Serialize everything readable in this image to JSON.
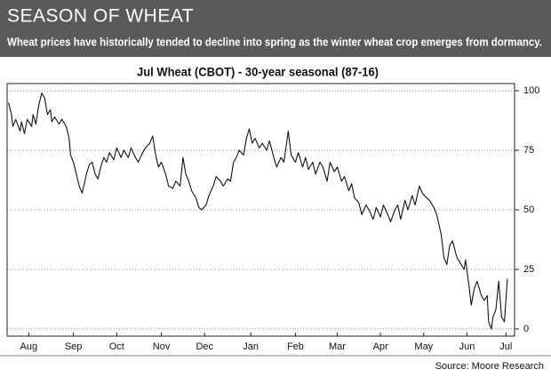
{
  "chart_data": {
    "type": "line",
    "header": "SEASON OF WHEAT",
    "subtitle": "Wheat prices have historically tended to decline into spring as the winter wheat crop emerges from dormancy.",
    "title": "Jul Wheat (CBOT) - 30-year seasonal (87-16)",
    "source": "Source: Moore Research",
    "x": [
      1,
      3,
      4,
      6,
      9,
      10,
      12,
      14,
      17,
      18,
      20,
      22,
      24,
      26,
      28,
      30,
      31,
      33,
      36,
      38,
      41,
      43,
      44,
      46,
      48,
      50,
      52,
      54,
      55,
      57,
      59,
      61,
      63,
      65,
      67,
      69,
      71,
      74,
      76,
      79,
      81,
      84,
      86,
      89,
      91,
      94,
      96,
      99,
      101,
      103,
      105,
      107,
      110,
      112,
      115,
      117,
      120,
      122,
      124,
      126,
      128,
      131,
      133,
      135,
      138,
      140,
      143,
      145,
      148,
      150,
      153,
      155,
      157,
      159,
      161,
      164,
      166,
      168,
      170,
      172,
      175,
      177,
      180,
      182,
      185,
      187,
      190,
      192,
      195,
      197,
      200,
      202,
      205,
      207,
      209,
      212,
      214,
      217,
      219,
      222,
      224,
      227,
      229,
      232,
      234,
      237,
      239,
      241,
      244,
      246,
      249,
      251,
      254,
      256,
      259,
      261,
      264,
      266,
      269,
      271,
      273,
      276,
      278,
      281,
      283,
      286,
      288,
      291,
      293,
      296,
      298,
      301,
      303,
      305,
      307,
      309,
      312,
      314,
      317,
      318,
      320,
      322,
      324,
      326,
      329,
      331,
      333,
      334,
      336,
      337,
      339,
      341,
      343,
      345,
      347
    ],
    "series": [
      {
        "color": "#111111",
        "values": [
          95,
          90,
          85,
          88,
          83,
          87,
          82,
          88,
          85,
          90,
          86,
          94,
          99,
          97,
          90,
          92,
          87,
          89,
          86,
          88,
          85,
          80,
          73,
          70,
          65,
          60,
          57,
          62,
          65,
          69,
          70,
          65,
          63,
          68,
          72,
          70,
          74,
          71,
          76,
          72,
          75,
          72,
          76,
          72,
          70,
          74,
          76,
          78,
          81,
          73,
          68,
          70,
          65,
          60,
          59,
          62,
          60,
          72,
          65,
          62,
          58,
          55,
          51,
          50,
          52,
          56,
          60,
          64,
          62,
          60,
          63,
          62,
          70,
          72,
          75,
          73,
          80,
          84,
          78,
          80,
          76,
          78,
          75,
          79,
          72,
          68,
          72,
          70,
          83,
          73,
          70,
          74,
          68,
          72,
          67,
          70,
          65,
          70,
          68,
          62,
          70,
          66,
          68,
          62,
          64,
          58,
          61,
          55,
          53,
          48,
          52,
          50,
          46,
          51,
          47,
          52,
          48,
          45,
          50,
          52,
          46,
          54,
          50,
          56,
          52,
          60,
          57,
          55,
          54,
          51,
          48,
          40,
          30,
          27,
          35,
          37,
          30,
          28,
          25,
          29,
          20,
          10,
          17,
          20,
          14,
          12,
          14,
          3,
          0,
          5,
          8,
          20,
          5,
          3,
          21
        ]
      }
    ],
    "xlim": [
      0,
      352
    ],
    "xticks": [
      {
        "value": 15,
        "label": "Aug"
      },
      {
        "value": 46,
        "label": "Sep"
      },
      {
        "value": 76,
        "label": "Oct"
      },
      {
        "value": 107,
        "label": "Nov"
      },
      {
        "value": 137,
        "label": "Dec"
      },
      {
        "value": 169,
        "label": "Jan"
      },
      {
        "value": 200,
        "label": "Feb"
      },
      {
        "value": 229,
        "label": "Mar"
      },
      {
        "value": 259,
        "label": "Apr"
      },
      {
        "value": 289,
        "label": "May"
      },
      {
        "value": 319,
        "label": "Jun"
      },
      {
        "value": 346,
        "label": "Jul"
      }
    ],
    "ylim": [
      -3,
      103
    ],
    "yticks": [
      0,
      25,
      50,
      75,
      100
    ],
    "grid": true
  }
}
